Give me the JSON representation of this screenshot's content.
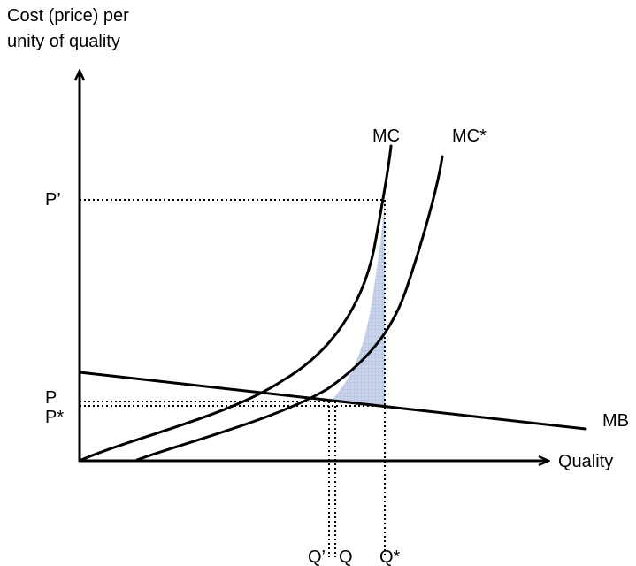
{
  "axes": {
    "y_title_line1": "Cost (price) per",
    "y_title_line2": "unity of quality",
    "x_title": "Quality"
  },
  "curve_labels": {
    "mc": "MC",
    "mc_star": "MC*",
    "mb": "MB"
  },
  "price_labels": {
    "p_prime": "P’",
    "p": "P",
    "p_star": "P*"
  },
  "quantity_labels": {
    "q_prime": "Q’",
    "q": "Q",
    "q_star": "Q*"
  },
  "colors": {
    "line": "#000000",
    "shaded_area": "#c9d3ea",
    "shaded_grid": "#a9b7d8"
  }
}
